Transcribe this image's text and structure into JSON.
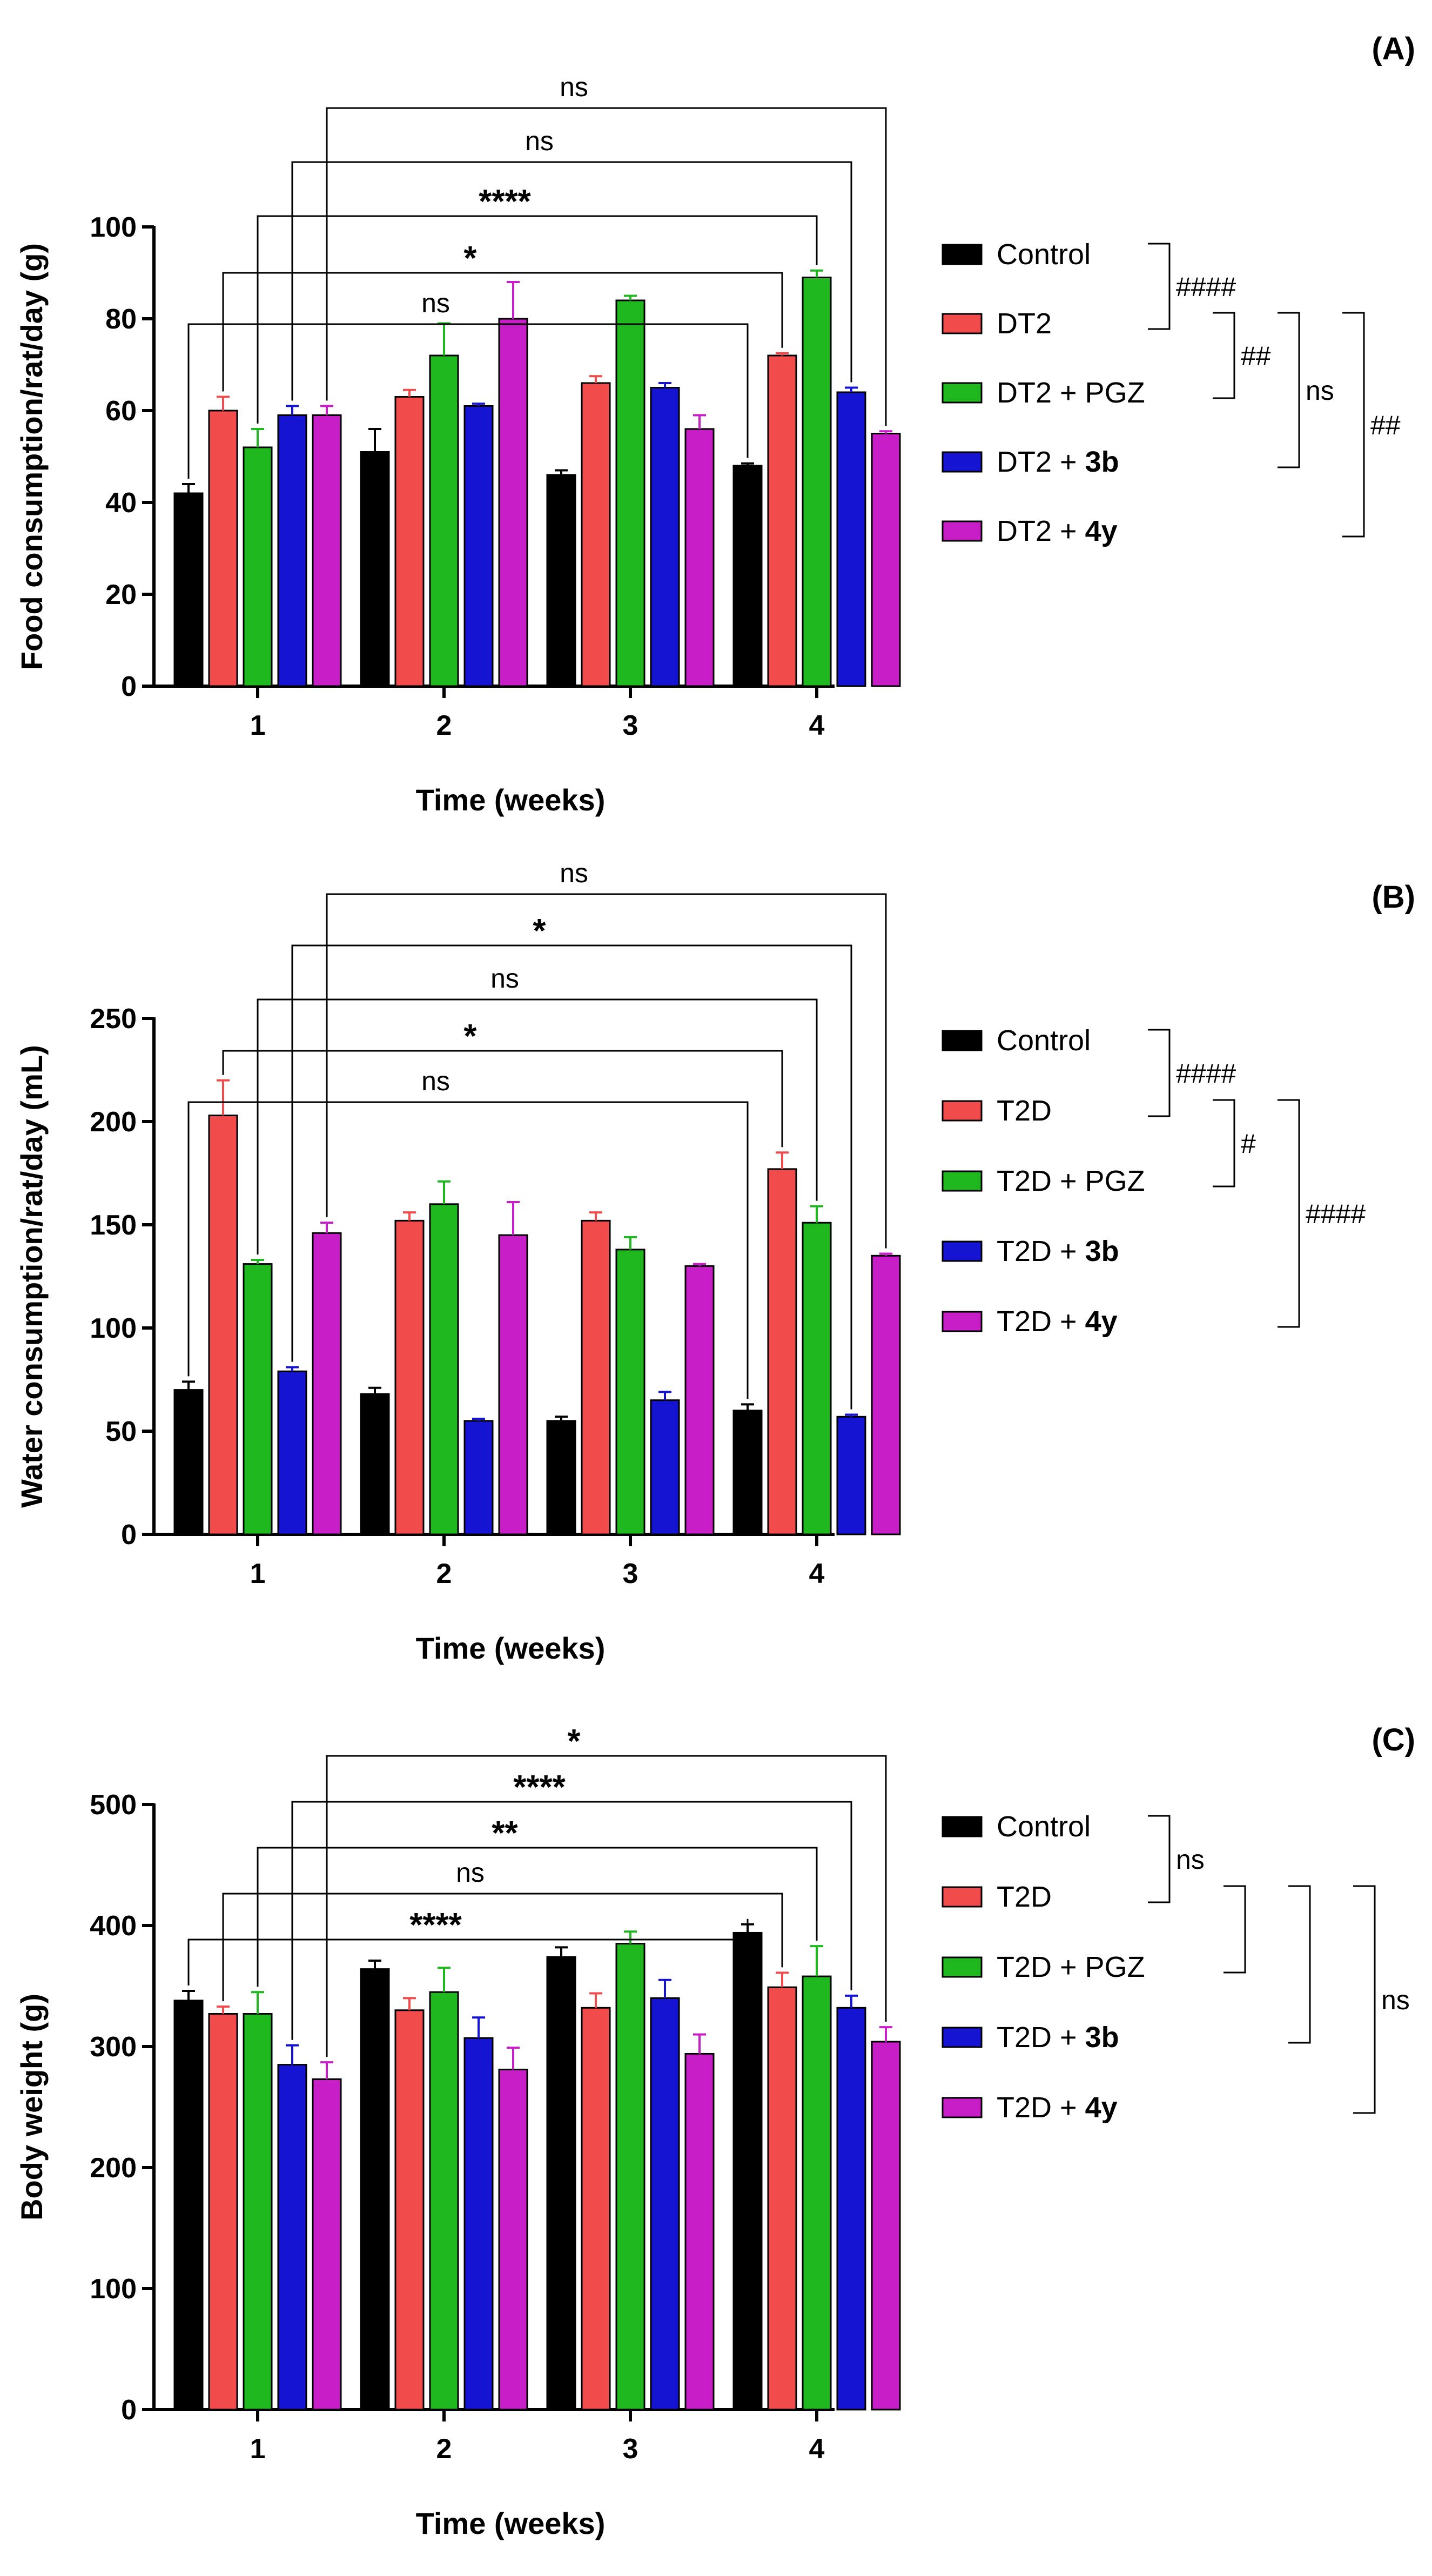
{
  "figure": {
    "colors": {
      "Control": "#000000",
      "DT2": "#f14b4b",
      "T2D": "#f14b4b",
      "PGZ": "#1fb81f",
      "3b": "#1414d2",
      "4y": "#c81ec8"
    }
  },
  "chart_data": [
    {
      "panel_label": "(A)",
      "type": "bar",
      "title": "",
      "xlabel": "Time (weeks)",
      "ylabel": "Food consumption/rat/day (g)",
      "ylim": [
        0,
        100
      ],
      "yticks": [
        "0",
        "20",
        "40",
        "60",
        "80",
        "100"
      ],
      "categories": [
        "1",
        "2",
        "3",
        "4"
      ],
      "legend_position": "right",
      "series": [
        {
          "name": "Control",
          "legend_parts": [
            "Control"
          ],
          "color_key": "Control",
          "values": [
            42,
            51,
            46,
            48
          ],
          "errors": [
            2,
            5,
            1,
            0.5
          ]
        },
        {
          "name": "DT2",
          "legend_parts": [
            "DT2"
          ],
          "color_key": "DT2",
          "values": [
            60,
            63,
            66,
            72
          ],
          "errors": [
            3,
            1.5,
            1.5,
            0.5
          ]
        },
        {
          "name": "DT2 + PGZ",
          "legend_parts": [
            "DT2 + PGZ"
          ],
          "color_key": "PGZ",
          "values": [
            52,
            72,
            84,
            89
          ],
          "errors": [
            4,
            7,
            1,
            1.5
          ]
        },
        {
          "name": "DT2 + 3b",
          "legend_parts": [
            "DT2 + ",
            "3b"
          ],
          "color_key": "3b",
          "values": [
            59,
            61,
            65,
            64
          ],
          "errors": [
            2,
            0.5,
            1,
            1
          ]
        },
        {
          "name": "DT2 + 4y",
          "legend_parts": [
            "DT2 + ",
            "4y"
          ],
          "color_key": "4y",
          "values": [
            59,
            80,
            56,
            55
          ],
          "errors": [
            2,
            8,
            3,
            0.5
          ]
        }
      ],
      "comparisons": [
        {
          "series": 0,
          "label": "ns"
        },
        {
          "series": 1,
          "label": "*"
        },
        {
          "series": 2,
          "label": "****"
        },
        {
          "series": 3,
          "label": "ns"
        },
        {
          "series": 4,
          "label": "ns"
        }
      ],
      "legend_brackets": [
        {
          "from": 0,
          "to": 1,
          "label": "####"
        },
        {
          "from": 1,
          "to": 2,
          "label": "##"
        },
        {
          "from": 1,
          "to": 3,
          "label": "ns"
        },
        {
          "from": 1,
          "to": 4,
          "label": "##"
        }
      ]
    },
    {
      "panel_label": "(B)",
      "type": "bar",
      "title": "",
      "xlabel": "Time (weeks)",
      "ylabel": "Water consumption/rat/day (mL)",
      "ylim": [
        0,
        250
      ],
      "yticks": [
        "0",
        "50",
        "100",
        "150",
        "200",
        "250"
      ],
      "categories": [
        "1",
        "2",
        "3",
        "4"
      ],
      "legend_position": "right",
      "series": [
        {
          "name": "Control",
          "legend_parts": [
            "Control"
          ],
          "color_key": "Control",
          "values": [
            70,
            68,
            55,
            60
          ],
          "errors": [
            4,
            3,
            2,
            3
          ]
        },
        {
          "name": "T2D",
          "legend_parts": [
            "T2D"
          ],
          "color_key": "T2D",
          "values": [
            203,
            152,
            152,
            177
          ],
          "errors": [
            17,
            4,
            4,
            8
          ]
        },
        {
          "name": "T2D + PGZ",
          "legend_parts": [
            "T2D + PGZ"
          ],
          "color_key": "PGZ",
          "values": [
            131,
            160,
            138,
            151
          ],
          "errors": [
            2,
            11,
            6,
            8
          ]
        },
        {
          "name": "T2D + 3b",
          "legend_parts": [
            "T2D + ",
            "3b"
          ],
          "color_key": "3b",
          "values": [
            79,
            55,
            65,
            57
          ],
          "errors": [
            2,
            1,
            4,
            1
          ]
        },
        {
          "name": "T2D + 4y",
          "legend_parts": [
            "T2D + ",
            "4y"
          ],
          "color_key": "4y",
          "values": [
            146,
            145,
            130,
            135
          ],
          "errors": [
            5,
            16,
            1,
            1
          ]
        }
      ],
      "comparisons": [
        {
          "series": 0,
          "label": "ns"
        },
        {
          "series": 1,
          "label": "*"
        },
        {
          "series": 2,
          "label": "ns"
        },
        {
          "series": 3,
          "label": "*"
        },
        {
          "series": 4,
          "label": "ns"
        }
      ],
      "legend_brackets": [
        {
          "from": 0,
          "to": 1,
          "label": "####"
        },
        {
          "from": 1,
          "to": 2,
          "label": "#"
        },
        {
          "from": 1,
          "to": 4,
          "label": "####",
          "extended_from": 3
        }
      ]
    },
    {
      "panel_label": "(C)",
      "type": "bar",
      "title": "",
      "xlabel": "Time (weeks)",
      "ylabel": "Body weight (g)",
      "ylim": [
        0,
        500
      ],
      "yticks": [
        "0",
        "100",
        "200",
        "300",
        "400",
        "500"
      ],
      "categories": [
        "1",
        "2",
        "3",
        "4"
      ],
      "legend_position": "right",
      "series": [
        {
          "name": "Control",
          "legend_parts": [
            "Control"
          ],
          "color_key": "Control",
          "values": [
            338,
            364,
            374,
            394
          ],
          "errors": [
            8,
            7,
            8,
            7
          ]
        },
        {
          "name": "T2D",
          "legend_parts": [
            "T2D"
          ],
          "color_key": "T2D",
          "values": [
            327,
            330,
            332,
            349
          ],
          "errors": [
            6,
            10,
            12,
            12
          ]
        },
        {
          "name": "T2D + PGZ",
          "legend_parts": [
            "T2D + PGZ"
          ],
          "color_key": "PGZ",
          "values": [
            327,
            345,
            385,
            358
          ],
          "errors": [
            18,
            20,
            10,
            25
          ]
        },
        {
          "name": "T2D + 3b",
          "legend_parts": [
            "T2D + ",
            "3b"
          ],
          "color_key": "3b",
          "values": [
            285,
            307,
            340,
            332
          ],
          "errors": [
            16,
            17,
            15,
            10
          ]
        },
        {
          "name": "T2D + 4y",
          "legend_parts": [
            "T2D + ",
            "4y"
          ],
          "color_key": "4y",
          "values": [
            273,
            281,
            294,
            304
          ],
          "errors": [
            14,
            18,
            16,
            12
          ]
        }
      ],
      "comparisons": [
        {
          "series": 0,
          "label": "****"
        },
        {
          "series": 1,
          "label": "ns"
        },
        {
          "series": 2,
          "label": "**"
        },
        {
          "series": 3,
          "label": "****"
        },
        {
          "series": 4,
          "label": "*"
        }
      ],
      "legend_brackets": [
        {
          "from": 0,
          "to": 1,
          "label": "ns"
        },
        {
          "from": 1,
          "to": 2,
          "label": ""
        },
        {
          "from": 1,
          "to": 3,
          "label": ""
        },
        {
          "from": 1,
          "to": 4,
          "label": "ns"
        }
      ]
    }
  ]
}
